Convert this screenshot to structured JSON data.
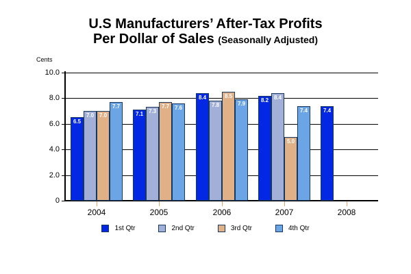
{
  "title": {
    "line1": "U.S Manufacturers’ After-Tax Profits",
    "line2_main": "Per Dollar of Sales",
    "line2_sub": "(Seasonally Adjusted)"
  },
  "chart_data": {
    "type": "bar",
    "title": "U.S Manufacturers’ After-Tax Profits Per Dollar of Sales (Seasonally Adjusted)",
    "ylabel": "Cents",
    "xlabel": "",
    "ylim": [
      0,
      10.0
    ],
    "ytick_interval": 2.0,
    "yticks": [
      10.0,
      8.0,
      6.0,
      4.0,
      2.0,
      0
    ],
    "ytick_labels": [
      "10.0",
      "8.0",
      "6.0",
      "4.0",
      "2.0",
      "0"
    ],
    "grid": true,
    "legend_position": "bottom",
    "bar_value_labels_shown": true,
    "categories": [
      "2004",
      "2005",
      "2006",
      "2007",
      "2008"
    ],
    "series": [
      {
        "name": "1st Qtr",
        "color": "#0328e3",
        "values": [
          6.5,
          7.1,
          8.4,
          8.2,
          7.4
        ]
      },
      {
        "name": "2nd Qtr",
        "color": "#a2b0d8",
        "values": [
          7.0,
          7.3,
          7.8,
          8.4,
          null
        ]
      },
      {
        "name": "3rd Qtr",
        "color": "#e0b087",
        "values": [
          7.0,
          7.7,
          8.5,
          5.0,
          null
        ]
      },
      {
        "name": "4th Qtr",
        "color": "#6ba5e5",
        "values": [
          7.7,
          7.6,
          7.9,
          7.4,
          null
        ]
      }
    ],
    "colors": {
      "bar_border": "#17375e",
      "year_tick": "#e8a15e",
      "value_label_text": "#ffffff"
    }
  }
}
